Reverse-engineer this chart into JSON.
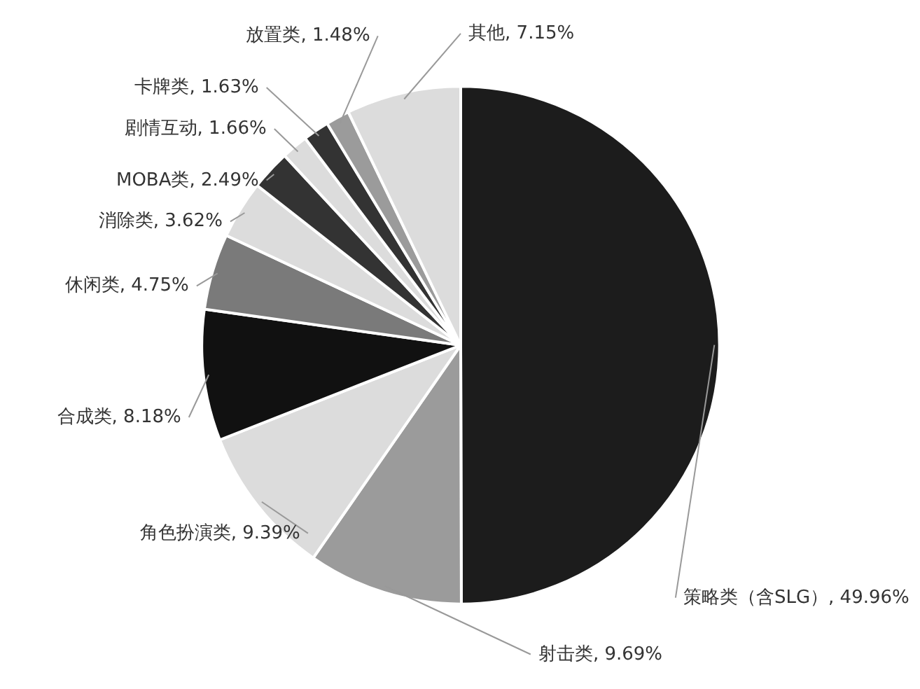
{
  "chart_data": {
    "type": "pie",
    "categories": [
      "策略类（含SLG）",
      "射击类",
      "角色扮演类",
      "合成类",
      "休闲类",
      "消除类",
      "MOBA类",
      "剧情互动",
      "卡牌类",
      "放置类",
      "其他"
    ],
    "values": [
      49.96,
      9.69,
      9.39,
      8.18,
      4.75,
      3.62,
      2.49,
      1.66,
      1.63,
      1.48,
      7.15
    ],
    "value_labels": [
      "49.96%",
      "9.69%",
      "9.39%",
      "8.18%",
      "4.75%",
      "3.62%",
      "2.49%",
      "1.66%",
      "1.63%",
      "1.48%",
      "7.15%"
    ],
    "colors": [
      "#1c1c1c",
      "#9b9b9b",
      "#dcdcdc",
      "#111111",
      "#7a7a7a",
      "#dcdcdc",
      "#333333",
      "#dcdcdc",
      "#333333",
      "#9b9b9b",
      "#dcdcdc"
    ]
  }
}
